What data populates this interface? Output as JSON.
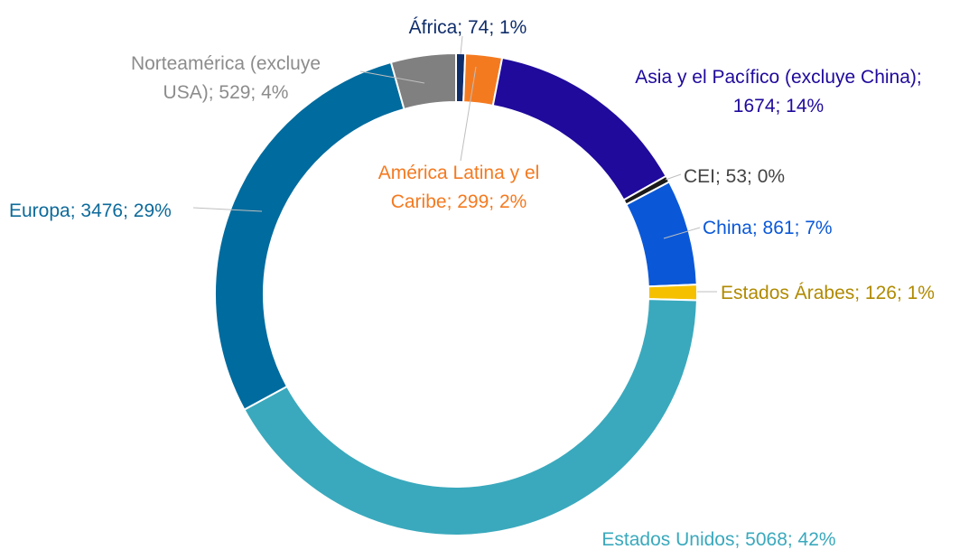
{
  "chart_data": {
    "type": "pie",
    "variant": "doughnut",
    "title": "",
    "legend": "none",
    "slices": [
      {
        "label": "África",
        "value": 74,
        "percent": "1%",
        "color": "#0f2d6b",
        "label_color": "#0f2d6b",
        "label_lines": [
          "África; 74; 1%"
        ]
      },
      {
        "label": "América Latina y el Caribe",
        "value": 299,
        "percent": "2%",
        "color": "#f47a20",
        "label_color": "#f47a20",
        "label_lines": [
          "América Latina y el",
          "Caribe; 299; 2%"
        ]
      },
      {
        "label": "Asia y el Pacífico (excluye China)",
        "value": 1674,
        "percent": "14%",
        "color": "#1f0a9c",
        "label_color": "#1f0a9c",
        "label_lines": [
          "Asia y el Pacífico (excluye China);",
          "1674; 14%"
        ]
      },
      {
        "label": "CEI",
        "value": 53,
        "percent": "0%",
        "color": "#1a1a1a",
        "label_color": "#444444",
        "label_lines": [
          "CEI; 53; 0%"
        ]
      },
      {
        "label": "China",
        "value": 861,
        "percent": "7%",
        "color": "#0a58d8",
        "label_color": "#0a58d8",
        "label_lines": [
          "China; 861; 7%"
        ]
      },
      {
        "label": "Estados Árabes",
        "value": 126,
        "percent": "1%",
        "color": "#f5c000",
        "label_color": "#b08a00",
        "label_lines": [
          "Estados Árabes; 126; 1%"
        ]
      },
      {
        "label": "Estados Unidos",
        "value": 5068,
        "percent": "42%",
        "color": "#3aa9bd",
        "label_color": "#3aa9bd",
        "label_lines": [
          "Estados Unidos; 5068; 42%"
        ]
      },
      {
        "label": "Europa",
        "value": 3476,
        "percent": "29%",
        "color": "#006b9e",
        "label_color": "#0d6a9a",
        "label_lines": [
          "Europa; 3476; 29%"
        ]
      },
      {
        "label": "Norteamérica (excluye USA)",
        "value": 529,
        "percent": "4%",
        "color": "#808080",
        "label_color": "#8c8c8c",
        "label_lines": [
          "Norteamérica (excluye",
          "USA); 529; 4%"
        ]
      }
    ]
  }
}
